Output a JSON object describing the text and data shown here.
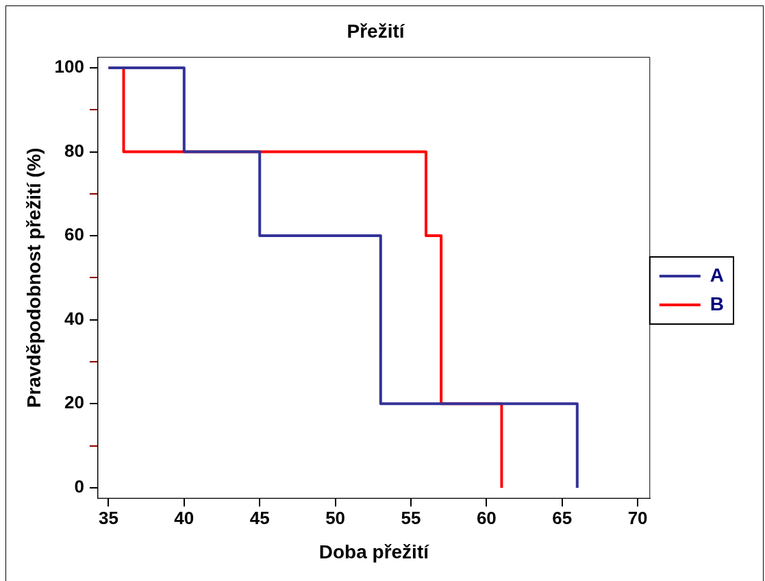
{
  "chart_data": {
    "type": "step",
    "title": "Přežití",
    "xlabel": "Doba přežití",
    "ylabel": "Pravděpodobnost přežití (%)",
    "series": [
      {
        "name": "A",
        "color": "#333399",
        "x": [
          35,
          40,
          45,
          53,
          66
        ],
        "values": [
          100,
          80,
          60,
          20,
          0
        ]
      },
      {
        "name": "B",
        "color": "#ff0000",
        "x": [
          35,
          36,
          56,
          57,
          61
        ],
        "values": [
          100,
          80,
          60,
          20,
          0
        ]
      }
    ],
    "xlim": [
      34.3,
      70.8
    ],
    "xticks": [
      35,
      40,
      45,
      50,
      55,
      60,
      65,
      70
    ],
    "ylim": [
      -2.5,
      102.5
    ],
    "yticks": [
      0,
      {
        "value": 10,
        "label": null
      },
      20,
      {
        "value": 30,
        "label": null
      },
      40,
      {
        "value": 50,
        "label": null
      },
      60,
      {
        "value": 70,
        "label": null
      },
      80,
      {
        "value": 90,
        "label": null
      },
      100
    ],
    "grid": false,
    "legend": "right",
    "line_style": "solid",
    "marker": "none"
  }
}
